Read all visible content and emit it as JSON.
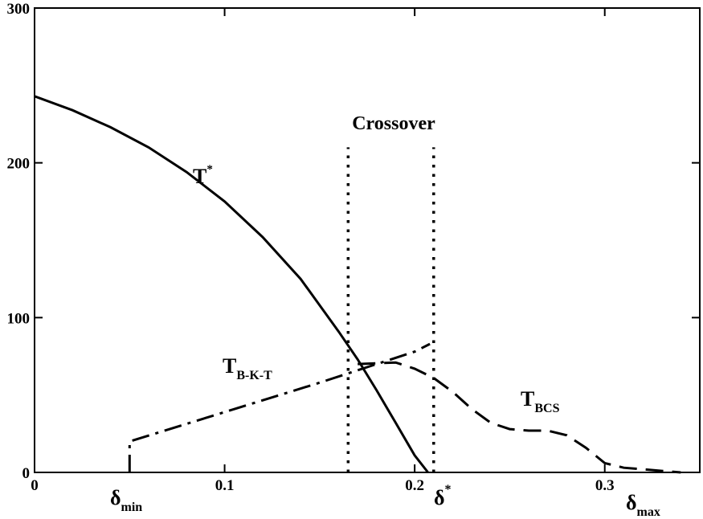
{
  "chart_data": {
    "type": "line",
    "xlim": [
      0,
      0.35
    ],
    "ylim": [
      0,
      300
    ],
    "x_ticks": [
      0,
      0.1,
      0.2,
      0.3
    ],
    "x_tick_labels": [
      "0",
      "0.1",
      "0.2",
      "0.3"
    ],
    "y_ticks": [
      0,
      100,
      200,
      300
    ],
    "y_tick_labels": [
      "0",
      "100",
      "200",
      "300"
    ],
    "grid": false,
    "legend": "none",
    "series": [
      {
        "style": "solid",
        "x": [
          0,
          0.02,
          0.04,
          0.06,
          0.08,
          0.1,
          0.12,
          0.14,
          0.16,
          0.17,
          0.18,
          0.19,
          0.2,
          0.207
        ],
        "y": [
          243,
          234,
          223,
          210,
          194,
          175,
          152,
          125,
          91,
          73,
          53,
          32,
          11,
          0
        ]
      },
      {
        "style": "dash-dot",
        "x": [
          0.05,
          0.05,
          0.1,
          0.15,
          0.2,
          0.208
        ],
        "y": [
          0,
          20,
          39,
          58,
          78,
          83
        ]
      },
      {
        "style": "dashed",
        "x": [
          0.17,
          0.19,
          0.2,
          0.21,
          0.22,
          0.23,
          0.24,
          0.25,
          0.26,
          0.27,
          0.28,
          0.29,
          0.3,
          0.31,
          0.32,
          0.33,
          0.34
        ],
        "y": [
          70,
          71,
          67,
          61,
          52,
          41,
          32,
          28,
          27,
          27,
          24,
          16,
          6,
          3,
          2,
          1,
          0
        ]
      }
    ],
    "crossover_lines": [
      {
        "x": 0.165,
        "y_range": [
          0,
          210
        ]
      },
      {
        "x": 0.21,
        "y_range": [
          0,
          210
        ]
      }
    ],
    "annotations": {
      "crossover": "Crossover",
      "t_star": {
        "main": "T",
        "sup": "*"
      },
      "t_bkt": {
        "main": "T",
        "sub": "B-K-T"
      },
      "t_bcs": {
        "main": "T",
        "sub": "BCS"
      },
      "delta_min": {
        "main": "δ",
        "sub": "min"
      },
      "delta_star": {
        "main": "δ",
        "sup": "*"
      },
      "delta_max": {
        "main": "δ",
        "sub": "max"
      }
    }
  }
}
